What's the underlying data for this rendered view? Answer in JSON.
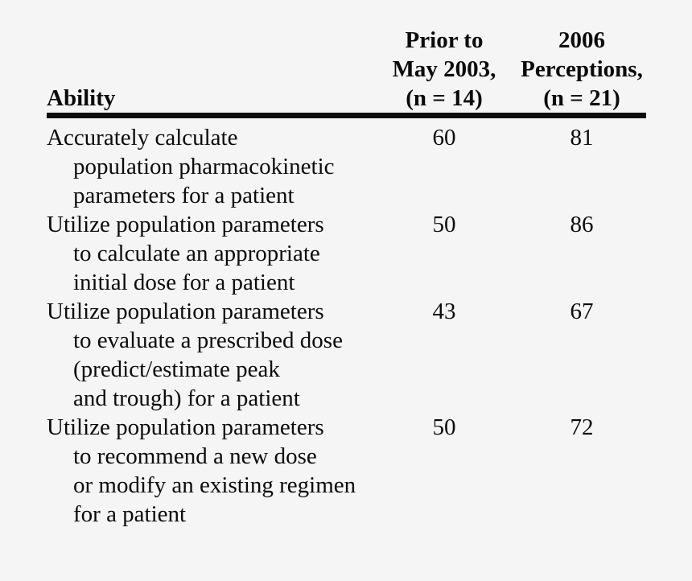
{
  "page": {
    "background_color": "#f5f5f5",
    "text_color": "#0b0b0b",
    "rule_color": "#0d0d0d"
  },
  "table": {
    "header": {
      "ability_label": "Ability",
      "prior_lines": [
        "Prior to",
        "May 2003,",
        "(n = 14)"
      ],
      "perceptions_lines": [
        "2006",
        "Perceptions,",
        "(n = 21)"
      ]
    },
    "rows": [
      {
        "ability_lines": [
          "Accurately calculate",
          "population pharmacokinetic",
          "parameters for a patient"
        ],
        "prior": "60",
        "perceptions": "81"
      },
      {
        "ability_lines": [
          "Utilize population parameters",
          "to calculate an appropriate",
          "initial dose for a patient"
        ],
        "prior": "50",
        "perceptions": "86"
      },
      {
        "ability_lines": [
          "Utilize population parameters",
          "to evaluate a prescribed dose",
          "(predict/estimate peak",
          "and trough) for a patient"
        ],
        "prior": "43",
        "perceptions": "67"
      },
      {
        "ability_lines": [
          "Utilize population parameters",
          "to recommend a new dose",
          "or modify an existing regimen",
          "for a patient"
        ],
        "prior": "50",
        "perceptions": "72"
      }
    ]
  },
  "chart_data": {
    "type": "table",
    "title": "",
    "columns": [
      "Ability",
      "Prior to May 2003, (n = 14)",
      "2006 Perceptions, (n = 21)"
    ],
    "rows": [
      [
        "Accurately calculate population pharmacokinetic parameters for a patient",
        60,
        81
      ],
      [
        "Utilize population parameters to calculate an appropriate initial dose for a patient",
        50,
        86
      ],
      [
        "Utilize population parameters to evaluate a prescribed dose (predict/estimate peak and trough) for a patient",
        43,
        67
      ],
      [
        "Utilize population parameters to recommend a new dose or modify an existing regimen for a patient",
        50,
        72
      ]
    ]
  }
}
